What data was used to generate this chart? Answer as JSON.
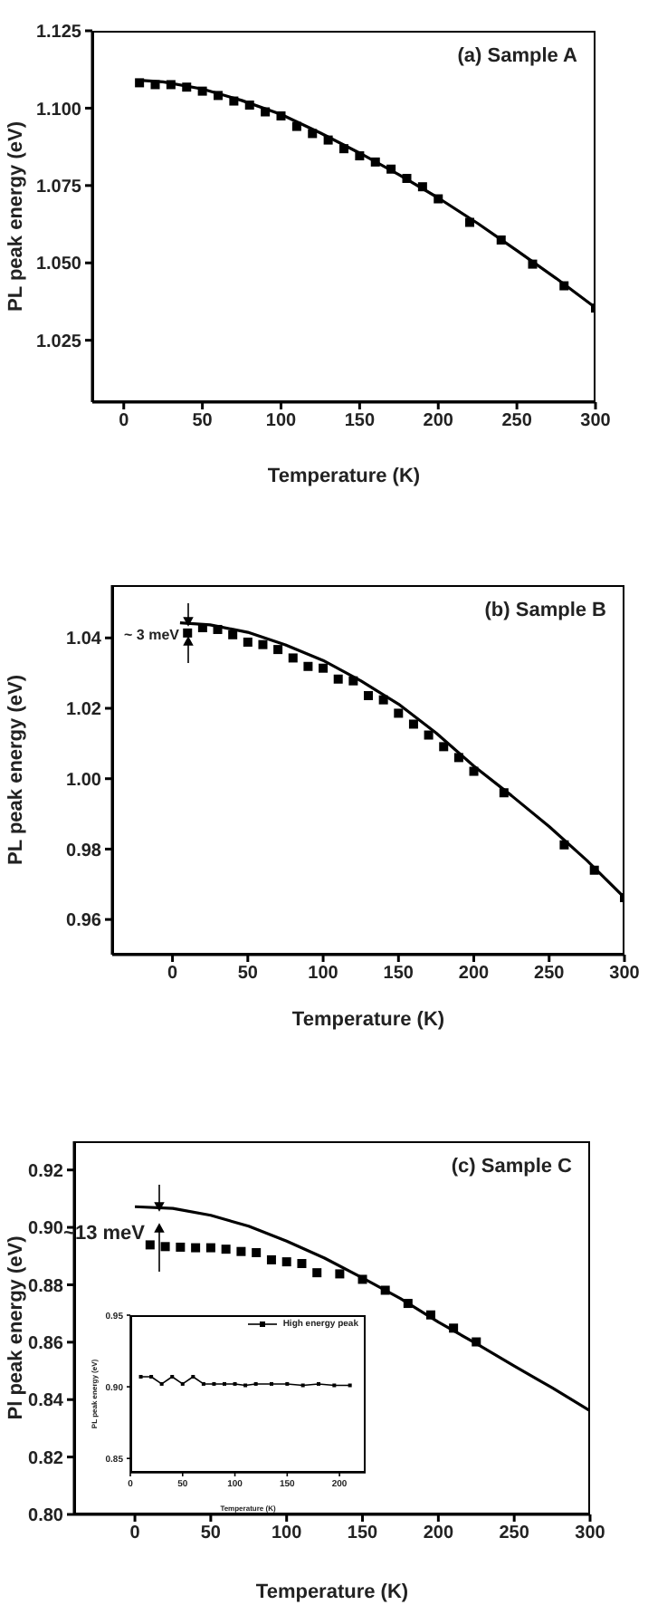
{
  "chart_data": [
    {
      "type": "scatter",
      "title": "(a) Sample A",
      "xlabel": "Temperature (K)",
      "ylabel": "PL peak energy (eV)",
      "xlim": [
        -20,
        300
      ],
      "ylim": [
        1.005,
        1.125
      ],
      "xticks": [
        0,
        50,
        100,
        150,
        200,
        250,
        300
      ],
      "yticks": [
        1.025,
        {
          "value": 1.05,
          "label": "1.050"
        },
        1.075,
        {
          "value": 1.1,
          "label": "1.100"
        },
        1.125
      ],
      "grid": false,
      "legend": false,
      "series": [
        {
          "marker": "square",
          "color": "#000000",
          "x": [
            10,
            20,
            30,
            40,
            50,
            60,
            70,
            80,
            90,
            100,
            110,
            120,
            130,
            140,
            150,
            160,
            170,
            180,
            190,
            200,
            220,
            240,
            260,
            280,
            300
          ],
          "values": [
            1.1082,
            1.1076,
            1.1076,
            1.1068,
            1.1055,
            1.1041,
            1.1023,
            1.101,
            1.0988,
            1.0975,
            1.0941,
            1.0918,
            1.0897,
            1.0869,
            1.0846,
            1.0826,
            1.0803,
            1.0773,
            1.0746,
            1.0707,
            1.0631,
            1.0574,
            1.0496,
            1.0426,
            1.0354
          ]
        },
        {
          "type": "line",
          "marker": "none",
          "line_style": "solid",
          "color": "#000000",
          "x": [
            10,
            25,
            50,
            75,
            100,
            125,
            150,
            175,
            200,
            225,
            250,
            275,
            300
          ],
          "values": [
            1.109,
            1.1085,
            1.1062,
            1.1025,
            1.098,
            1.092,
            1.0855,
            1.0785,
            1.071,
            1.0628,
            1.054,
            1.045,
            1.0355
          ]
        }
      ]
    },
    {
      "type": "scatter",
      "title": "(b) Sample B",
      "xlabel": "Temperature (K)",
      "ylabel": "PL peak energy (eV)",
      "xlim": [
        -40,
        300
      ],
      "ylim": [
        0.95,
        1.055
      ],
      "xticks": [
        0,
        50,
        100,
        150,
        200,
        250,
        300
      ],
      "yticks": [
        0.96,
        0.98,
        {
          "value": 1,
          "label": "1.00"
        },
        1.02,
        1.04
      ],
      "grid": false,
      "legend": false,
      "annotations": [
        "~ 3 meV"
      ],
      "series": [
        {
          "marker": "square",
          "color": "#000000",
          "x": [
            10,
            20,
            30,
            40,
            50,
            60,
            70,
            80,
            90,
            100,
            110,
            120,
            130,
            140,
            150,
            160,
            170,
            180,
            190,
            200,
            220,
            260,
            280,
            300
          ],
          "values": [
            1.0414,
            1.0429,
            1.0424,
            1.0409,
            1.0388,
            1.0381,
            1.0367,
            1.0343,
            1.0319,
            1.0314,
            1.0283,
            1.0278,
            1.0236,
            1.0224,
            1.0186,
            1.0155,
            1.0124,
            1.0091,
            1.006,
            1.0021,
            0.996,
            0.9812,
            0.974,
            0.9662
          ]
        },
        {
          "type": "line",
          "marker": "none",
          "line_style": "solid",
          "color": "#000000",
          "x": [
            5,
            25,
            50,
            75,
            100,
            125,
            150,
            175,
            200,
            225,
            250,
            275,
            300
          ],
          "values": [
            1.0443,
            1.0437,
            1.0416,
            1.038,
            1.0336,
            1.0278,
            1.0212,
            1.013,
            1.0036,
            0.9952,
            0.9864,
            0.9768,
            0.9662
          ]
        }
      ]
    },
    {
      "type": "scatter",
      "title": "(c) Sample C",
      "xlabel": "Temperature (K)",
      "ylabel": "Pl peak energy (eV)",
      "xlim": [
        -40,
        300
      ],
      "ylim": [
        0.8,
        0.93
      ],
      "xticks": [
        0,
        50,
        100,
        150,
        200,
        250,
        300
      ],
      "yticks": [
        {
          "value": 0.8,
          "label": "0.80"
        },
        0.82,
        0.84,
        0.86,
        0.88,
        {
          "value": 0.9,
          "label": "0.90"
        },
        0.92
      ],
      "grid": false,
      "legend": false,
      "annotations": [
        "~13 meV"
      ],
      "series": [
        {
          "marker": "square",
          "color": "#000000",
          "x": [
            10,
            20,
            30,
            40,
            50,
            60,
            70,
            80,
            90,
            100,
            110,
            120,
            135,
            150,
            165,
            180,
            195,
            210,
            225
          ],
          "values": [
            0.8939,
            0.8933,
            0.8931,
            0.8929,
            0.8929,
            0.8924,
            0.8916,
            0.8912,
            0.8887,
            0.888,
            0.8874,
            0.8842,
            0.8838,
            0.8819,
            0.8781,
            0.8735,
            0.8695,
            0.8649,
            0.8601
          ]
        },
        {
          "type": "line",
          "marker": "none",
          "line_style": "solid",
          "color": "#000000",
          "x": [
            0,
            25,
            50,
            75,
            100,
            125,
            150,
            175,
            200,
            225,
            250,
            275,
            300
          ],
          "values": [
            0.9072,
            0.9066,
            0.9042,
            0.9004,
            0.8952,
            0.8893,
            0.8824,
            0.8752,
            0.867,
            0.8595,
            0.8517,
            0.8441,
            0.8361
          ]
        }
      ]
    },
    {
      "type": "line",
      "xlabel": "Temperature (K)",
      "ylabel": "PL peak energy (eV)",
      "xlim": [
        0,
        225
      ],
      "ylim": [
        0.84,
        0.95
      ],
      "xticks": [
        0,
        50,
        100,
        150,
        200
      ],
      "yticks": [
        0.85,
        {
          "value": 0.9,
          "label": "0.90"
        },
        0.95
      ],
      "grid": false,
      "legend": "top right",
      "series": [
        {
          "name": "High energy peak",
          "marker": "square",
          "line_style": "solid",
          "color": "#000000",
          "x": [
            10,
            20,
            30,
            40,
            50,
            60,
            70,
            80,
            90,
            100,
            110,
            120,
            135,
            150,
            165,
            180,
            195,
            210
          ],
          "values": [
            0.907,
            0.907,
            0.902,
            0.907,
            0.902,
            0.907,
            0.902,
            0.902,
            0.902,
            0.902,
            0.901,
            0.902,
            0.902,
            0.902,
            0.901,
            0.902,
            0.901,
            0.901
          ]
        }
      ]
    }
  ]
}
